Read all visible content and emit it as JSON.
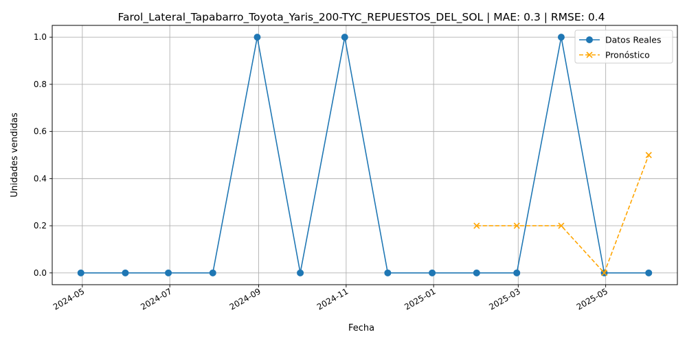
{
  "chart_data": {
    "type": "line",
    "title": "Farol_Lateral_Tapabarro_Toyota_Yaris_200-TYC_REPUESTOS_DEL_SOL | MAE: 0.3 | RMSE: 0.4",
    "xlabel": "Fecha",
    "ylabel": "Unidades vendidas",
    "xlim": [
      "2024-04-10",
      "2025-06-20"
    ],
    "ylim": [
      -0.05,
      1.05
    ],
    "x_ticks": [
      "2024-05",
      "2024-07",
      "2024-09",
      "2024-11",
      "2025-01",
      "2025-03",
      "2025-05"
    ],
    "y_ticks": [
      "0.0",
      "0.2",
      "0.4",
      "0.6",
      "0.8",
      "1.0"
    ],
    "grid": true,
    "legend_position": "top-right",
    "series": [
      {
        "name": "Datos Reales",
        "color": "#1f77b4",
        "marker": "circle",
        "line_style": "solid",
        "x": [
          "2024-04-30",
          "2024-05-31",
          "2024-06-30",
          "2024-07-31",
          "2024-08-31",
          "2024-09-30",
          "2024-10-31",
          "2024-11-30",
          "2024-12-31",
          "2025-01-31",
          "2025-02-28",
          "2025-03-31",
          "2025-04-30",
          "2025-05-31"
        ],
        "values": [
          0,
          0,
          0,
          0,
          1,
          0,
          1,
          0,
          0,
          0,
          0,
          1,
          0,
          0
        ]
      },
      {
        "name": "Pronóstico",
        "color": "#ffa500",
        "marker": "x",
        "line_style": "dashed",
        "x": [
          "2025-01-31",
          "2025-02-28",
          "2025-03-31",
          "2025-04-30",
          "2025-05-31"
        ],
        "values": [
          0.2,
          0.2,
          0.2,
          0,
          0.5
        ]
      }
    ]
  }
}
